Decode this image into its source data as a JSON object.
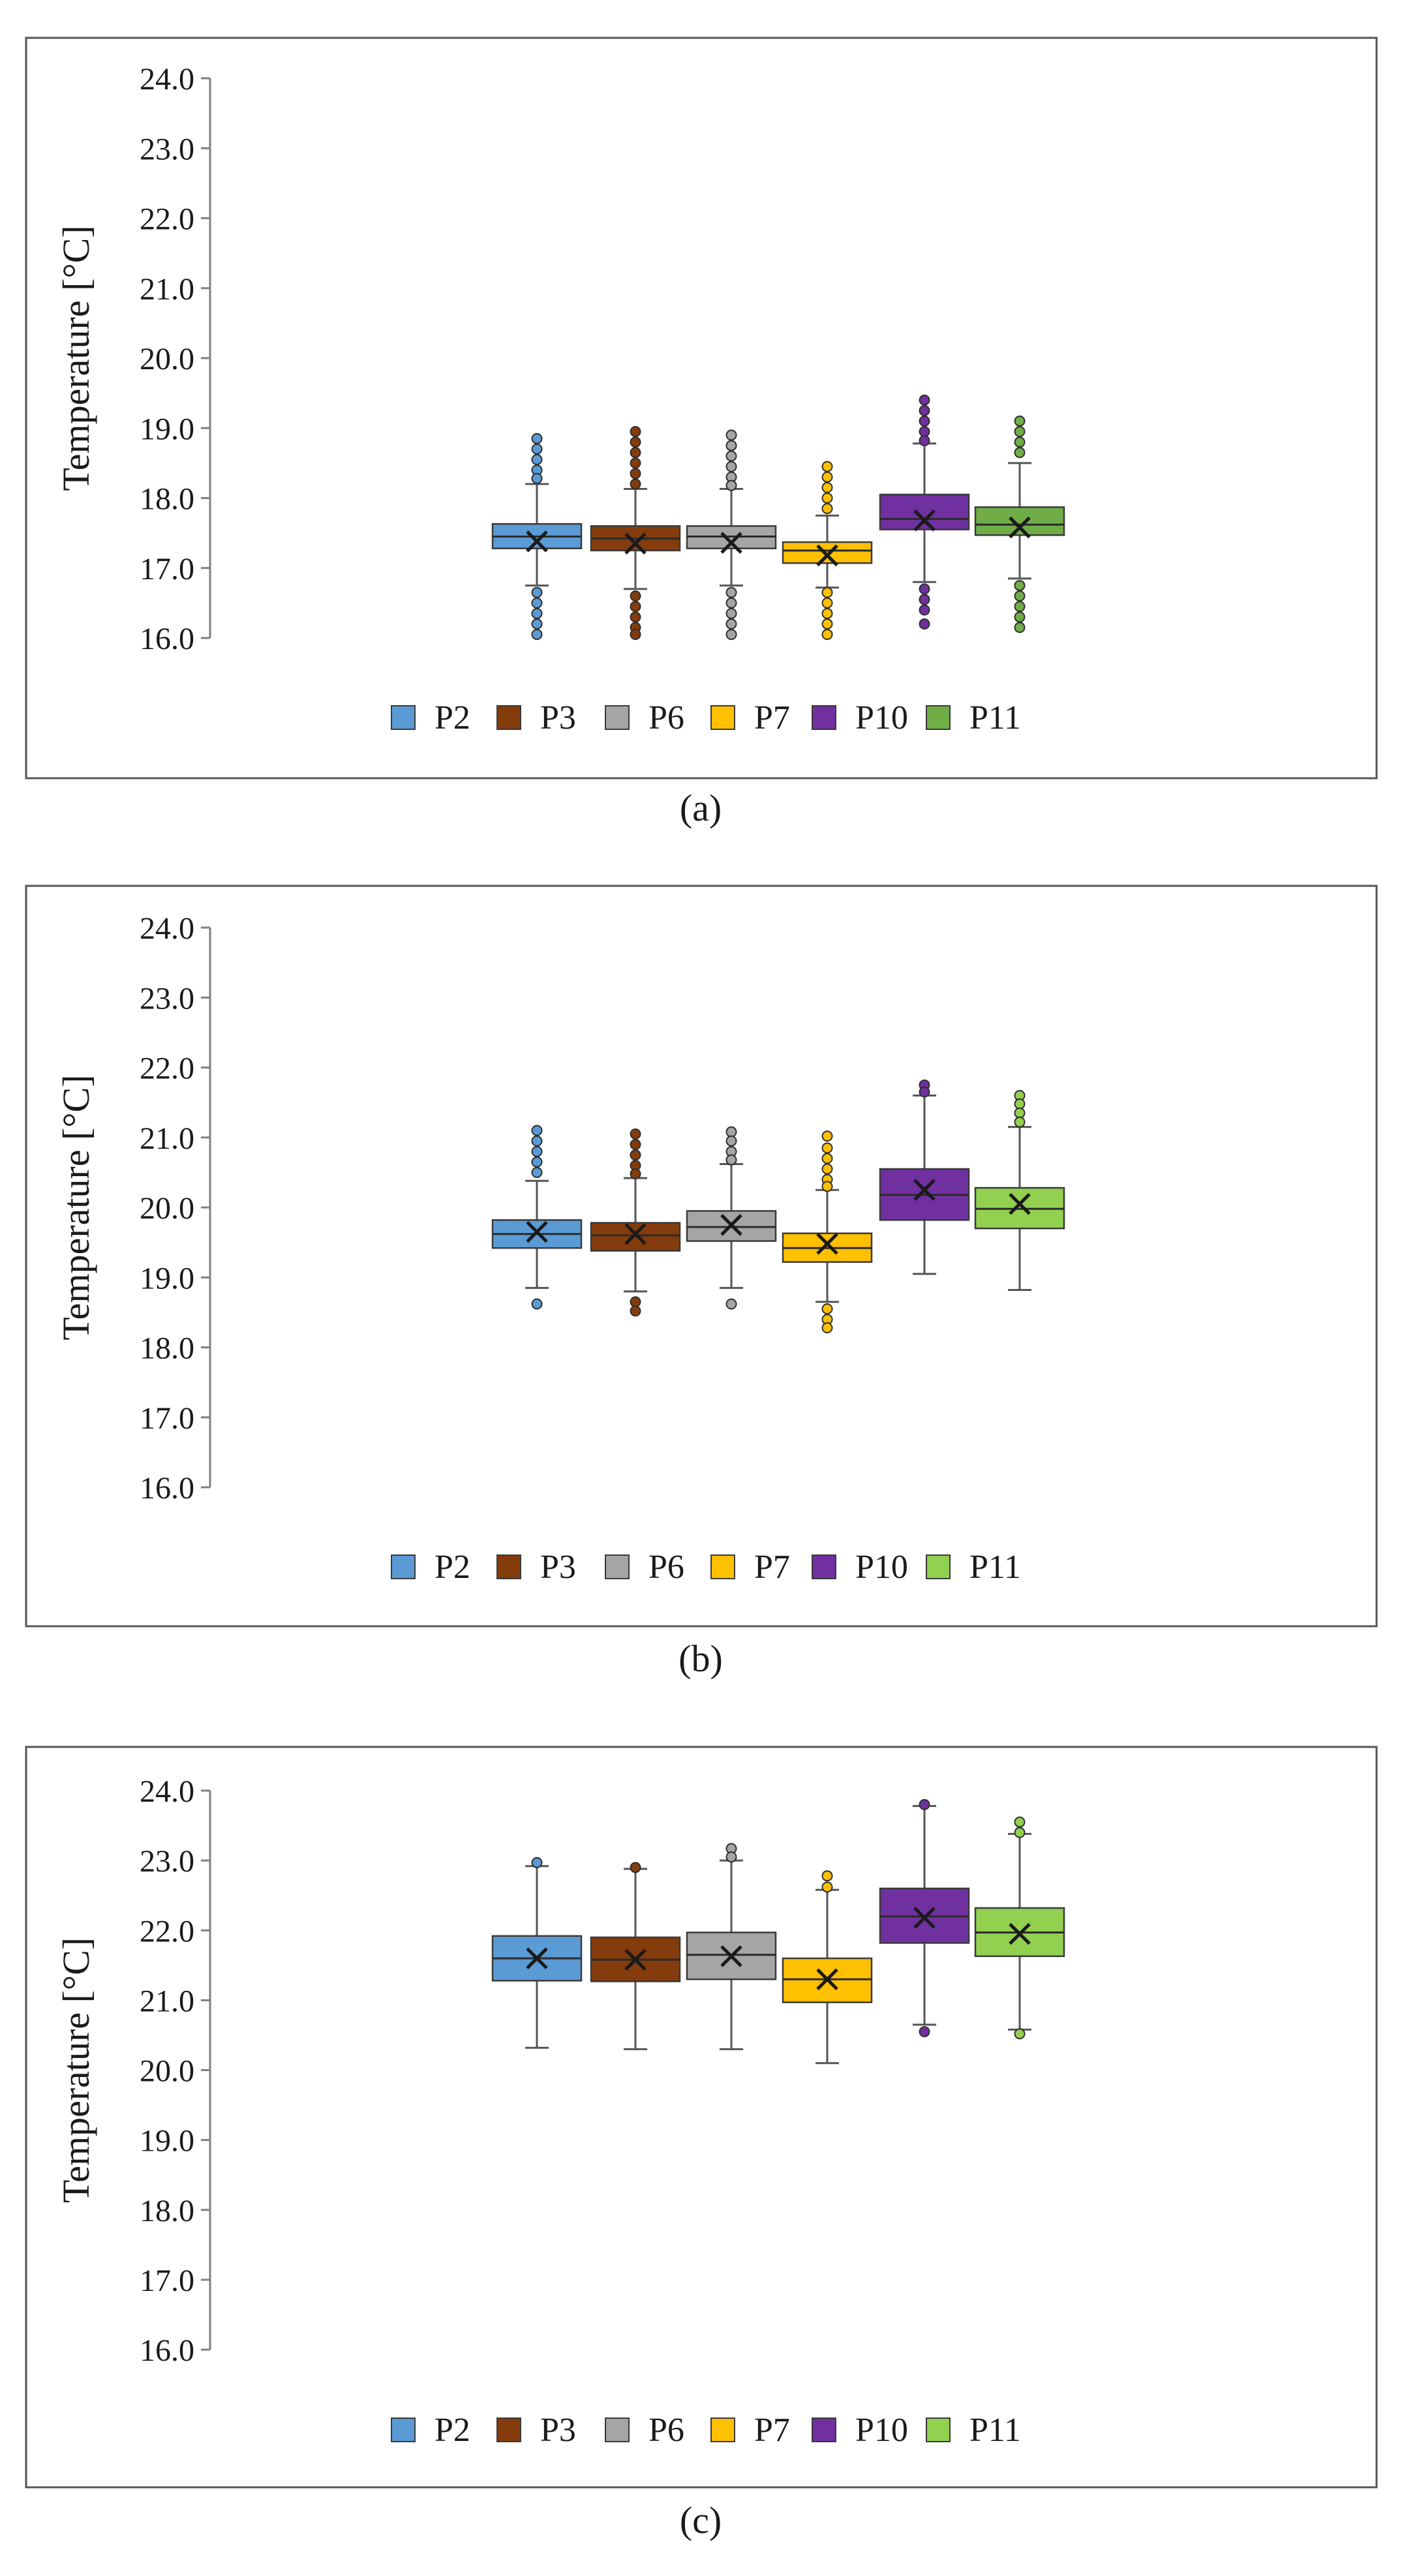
{
  "colors": {
    "frame": "#555555",
    "axis": "#7f7f7f",
    "whisker": "#555555",
    "mean_marker": "#1a1a1a",
    "P2": "#5b9bd5",
    "P3": "#843c0c",
    "P6": "#a5a5a5",
    "P7": "#ffc000",
    "P10": "#7030a0",
    "P11_dark": "#70ad47",
    "P11_light": "#92d050"
  },
  "chart_data": [
    {
      "type": "boxplot",
      "caption": "(a)",
      "ylabel": "Temperature [°C]",
      "ylim": [
        16.0,
        24.0
      ],
      "yticks": [
        "24.0",
        "23.0",
        "22.0",
        "21.0",
        "20.0",
        "19.0",
        "18.0",
        "17.0",
        "16.0"
      ],
      "legend_position": "bottom",
      "series": [
        {
          "name": "P2",
          "color": "#5b9bd5",
          "min": 16.75,
          "q1": 17.28,
          "median": 17.45,
          "mean": 17.38,
          "q3": 17.63,
          "max": 18.2,
          "outliers": [
            18.85,
            18.7,
            18.55,
            18.4,
            18.28,
            16.65,
            16.5,
            16.35,
            16.2,
            16.05
          ]
        },
        {
          "name": "P3",
          "color": "#843c0c",
          "min": 16.7,
          "q1": 17.25,
          "median": 17.42,
          "mean": 17.35,
          "q3": 17.6,
          "max": 18.13,
          "outliers": [
            18.95,
            18.8,
            18.65,
            18.5,
            18.35,
            18.2,
            16.6,
            16.45,
            16.3,
            16.15,
            16.05
          ]
        },
        {
          "name": "P6",
          "color": "#a5a5a5",
          "min": 16.75,
          "q1": 17.28,
          "median": 17.45,
          "mean": 17.36,
          "q3": 17.6,
          "max": 18.13,
          "outliers": [
            18.9,
            18.75,
            18.6,
            18.45,
            18.3,
            18.18,
            16.65,
            16.5,
            16.35,
            16.2,
            16.05
          ]
        },
        {
          "name": "P7",
          "color": "#ffc000",
          "min": 16.72,
          "q1": 17.07,
          "median": 17.25,
          "mean": 17.18,
          "q3": 17.37,
          "max": 17.75,
          "outliers": [
            18.45,
            18.3,
            18.15,
            18.0,
            17.85,
            16.65,
            16.5,
            16.35,
            16.2,
            16.05
          ]
        },
        {
          "name": "P10",
          "color": "#7030a0",
          "min": 16.8,
          "q1": 17.55,
          "median": 17.7,
          "mean": 17.68,
          "q3": 18.05,
          "max": 18.78,
          "outliers": [
            19.4,
            19.25,
            19.1,
            18.95,
            18.82,
            16.7,
            16.55,
            16.4,
            16.2
          ]
        },
        {
          "name": "P11",
          "color": "#70ad47",
          "min": 16.85,
          "q1": 17.47,
          "median": 17.62,
          "mean": 17.58,
          "q3": 17.87,
          "max": 18.5,
          "outliers": [
            19.1,
            18.95,
            18.8,
            18.65,
            16.75,
            16.6,
            16.45,
            16.3,
            16.15
          ]
        }
      ]
    },
    {
      "type": "boxplot",
      "caption": "(b)",
      "ylabel": "Temperature [°C]",
      "ylim": [
        16.0,
        24.0
      ],
      "yticks": [
        "24.0",
        "23.0",
        "22.0",
        "21.0",
        "20.0",
        "19.0",
        "18.0",
        "17.0",
        "16.0"
      ],
      "legend_position": "bottom",
      "series": [
        {
          "name": "P2",
          "color": "#5b9bd5",
          "min": 18.85,
          "q1": 19.42,
          "median": 19.62,
          "mean": 19.65,
          "q3": 19.82,
          "max": 20.38,
          "outliers": [
            21.1,
            20.95,
            20.8,
            20.65,
            20.5,
            18.62
          ]
        },
        {
          "name": "P3",
          "color": "#843c0c",
          "min": 18.8,
          "q1": 19.38,
          "median": 19.6,
          "mean": 19.62,
          "q3": 19.78,
          "max": 20.42,
          "outliers": [
            21.05,
            20.9,
            20.75,
            20.6,
            20.48,
            18.65,
            18.52
          ]
        },
        {
          "name": "P6",
          "color": "#a5a5a5",
          "min": 18.85,
          "q1": 19.52,
          "median": 19.72,
          "mean": 19.75,
          "q3": 19.95,
          "max": 20.62,
          "outliers": [
            21.08,
            20.95,
            20.8,
            20.68,
            18.62
          ]
        },
        {
          "name": "P7",
          "color": "#ffc000",
          "min": 18.65,
          "q1": 19.22,
          "median": 19.42,
          "mean": 19.48,
          "q3": 19.63,
          "max": 20.25,
          "outliers": [
            21.02,
            20.85,
            20.7,
            20.55,
            20.4,
            20.3,
            18.55,
            18.4,
            18.28
          ]
        },
        {
          "name": "P10",
          "color": "#7030a0",
          "min": 19.05,
          "q1": 19.82,
          "median": 20.18,
          "mean": 20.25,
          "q3": 20.55,
          "max": 21.6,
          "outliers": [
            21.75,
            21.65
          ]
        },
        {
          "name": "P11",
          "color": "#92d050",
          "min": 18.82,
          "q1": 19.7,
          "median": 19.98,
          "mean": 20.05,
          "q3": 20.28,
          "max": 21.15,
          "outliers": [
            21.6,
            21.48,
            21.35,
            21.22
          ]
        }
      ]
    },
    {
      "type": "boxplot",
      "caption": "(c)",
      "ylabel": "Temperature [°C]",
      "ylim": [
        16.0,
        24.0
      ],
      "yticks": [
        "24.0",
        "23.0",
        "22.0",
        "21.0",
        "20.0",
        "19.0",
        "18.0",
        "17.0",
        "16.0"
      ],
      "legend_position": "bottom",
      "series": [
        {
          "name": "P2",
          "color": "#5b9bd5",
          "min": 20.32,
          "q1": 21.28,
          "median": 21.6,
          "mean": 21.6,
          "q3": 21.92,
          "max": 22.92,
          "outliers": [
            22.97
          ]
        },
        {
          "name": "P3",
          "color": "#843c0c",
          "min": 20.3,
          "q1": 21.27,
          "median": 21.58,
          "mean": 21.58,
          "q3": 21.9,
          "max": 22.88,
          "outliers": [
            22.9
          ]
        },
        {
          "name": "P6",
          "color": "#a5a5a5",
          "min": 20.3,
          "q1": 21.3,
          "median": 21.65,
          "mean": 21.63,
          "q3": 21.97,
          "max": 23.0,
          "outliers": [
            23.17,
            23.05
          ]
        },
        {
          "name": "P7",
          "color": "#ffc000",
          "min": 20.1,
          "q1": 20.97,
          "median": 21.3,
          "mean": 21.3,
          "q3": 21.6,
          "max": 22.58,
          "outliers": [
            22.78,
            22.62
          ]
        },
        {
          "name": "P10",
          "color": "#7030a0",
          "min": 20.65,
          "q1": 21.82,
          "median": 22.2,
          "mean": 22.18,
          "q3": 22.6,
          "max": 23.78,
          "outliers": [
            23.8,
            20.55
          ]
        },
        {
          "name": "P11",
          "color": "#92d050",
          "min": 20.58,
          "q1": 21.63,
          "median": 21.97,
          "mean": 21.95,
          "q3": 22.32,
          "max": 23.38,
          "outliers": [
            23.55,
            23.4,
            20.52
          ]
        }
      ]
    }
  ]
}
